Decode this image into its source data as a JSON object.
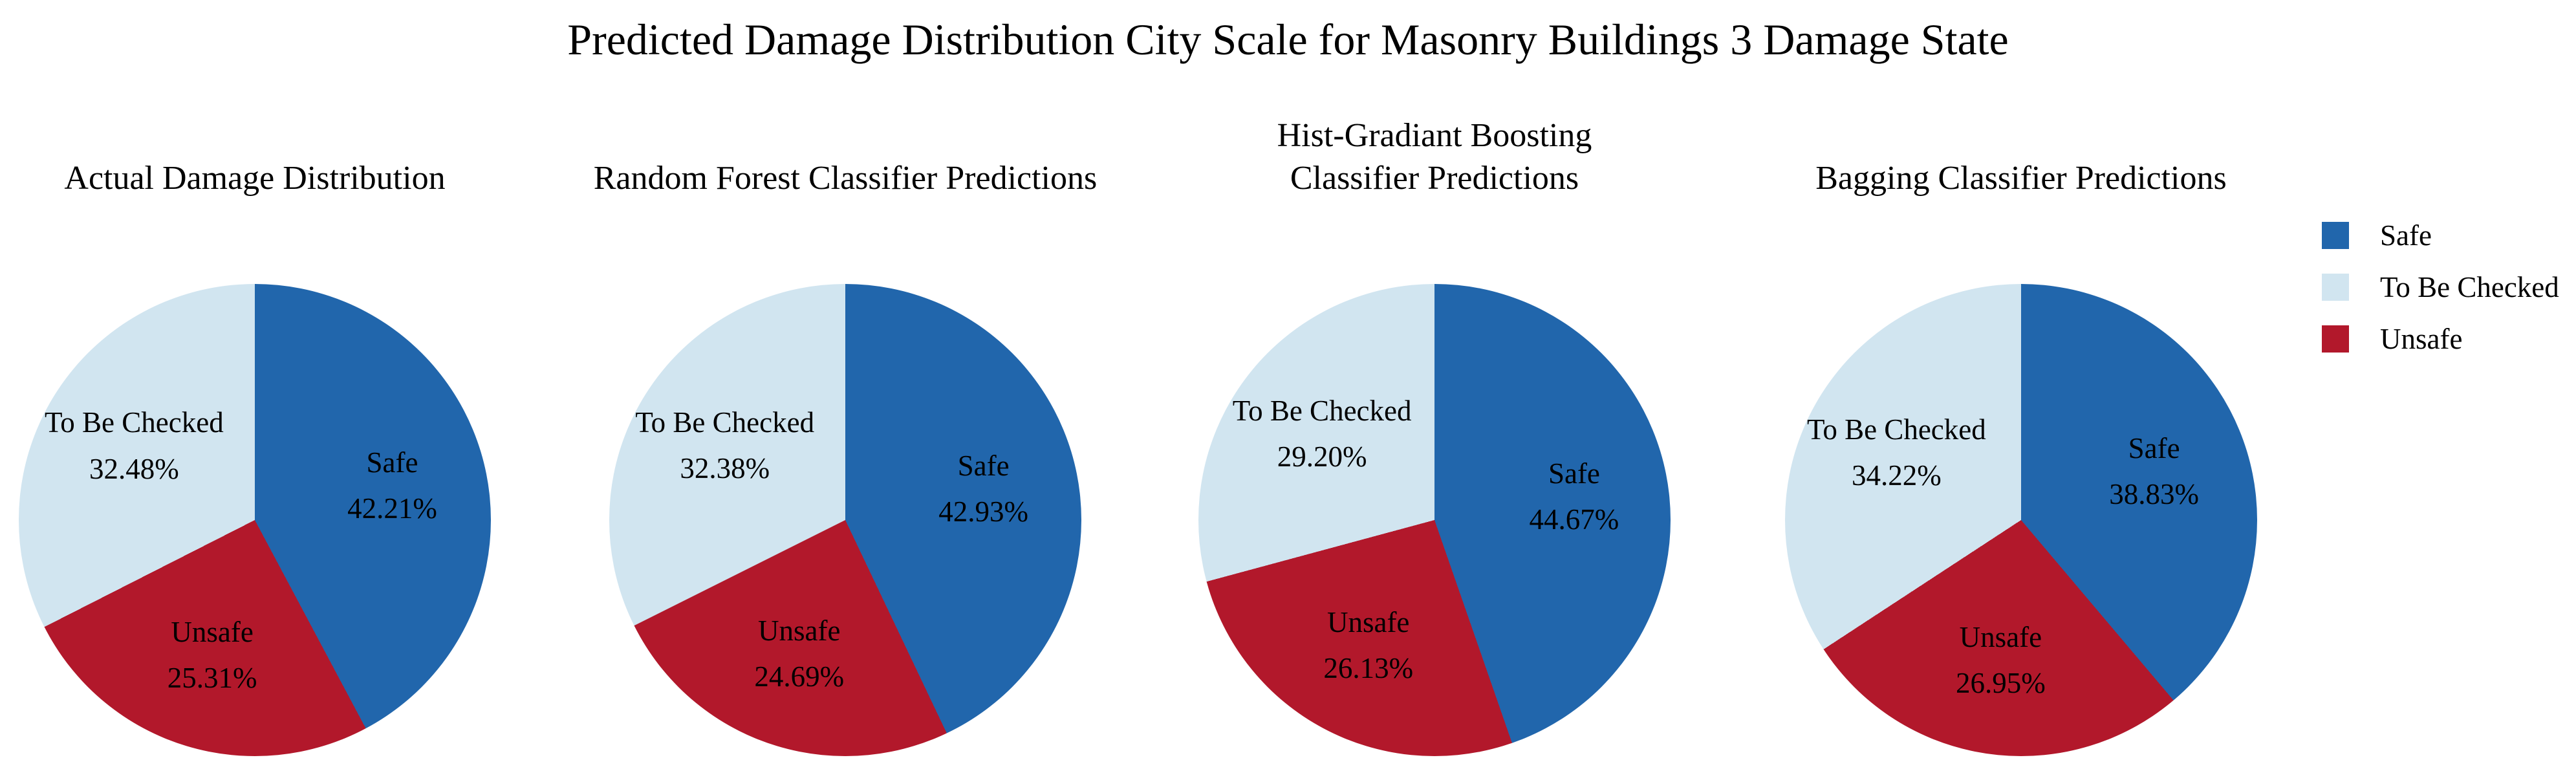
{
  "title": "Predicted Damage Distribution City Scale for Masonry Buildings 3 Damage State",
  "legend": {
    "position": "upper right",
    "items": [
      {
        "label": "Safe",
        "color": "#2166ac"
      },
      {
        "label": "To Be Checked",
        "color": "#d1e5f0"
      },
      {
        "label": "Unsafe",
        "color": "#b2182b"
      }
    ]
  },
  "colors": {
    "safe": "#2166ac",
    "to_be_checked": "#d1e5f0",
    "unsafe": "#b2182b"
  },
  "chart_data": [
    {
      "type": "pie",
      "title": "Actual Damage Distribution",
      "start_angle": 90,
      "counterclock": false,
      "slices": [
        {
          "label": "Safe",
          "value": 42.21,
          "pct_text": "42.21%",
          "color": "#2166ac"
        },
        {
          "label": "Unsafe",
          "value": 25.31,
          "pct_text": "25.31%",
          "color": "#b2182b"
        },
        {
          "label": "To Be Checked",
          "value": 32.48,
          "pct_text": "32.48%",
          "color": "#d1e5f0"
        }
      ]
    },
    {
      "type": "pie",
      "title": "Random Forest Classifier Predictions",
      "start_angle": 90,
      "counterclock": false,
      "slices": [
        {
          "label": "Safe",
          "value": 42.93,
          "pct_text": "42.93%",
          "color": "#2166ac"
        },
        {
          "label": "Unsafe",
          "value": 24.69,
          "pct_text": "24.69%",
          "color": "#b2182b"
        },
        {
          "label": "To Be Checked",
          "value": 32.38,
          "pct_text": "32.38%",
          "color": "#d1e5f0"
        }
      ]
    },
    {
      "type": "pie",
      "title": "Hist-Gradiant Boosting\nClassifier Predictions",
      "start_angle": 90,
      "counterclock": false,
      "slices": [
        {
          "label": "Safe",
          "value": 44.67,
          "pct_text": "44.67%",
          "color": "#2166ac"
        },
        {
          "label": "Unsafe",
          "value": 26.13,
          "pct_text": "26.13%",
          "color": "#b2182b"
        },
        {
          "label": "To Be Checked",
          "value": 29.2,
          "pct_text": "29.20%",
          "color": "#d1e5f0"
        }
      ]
    },
    {
      "type": "pie",
      "title": "Bagging Classifier Predictions",
      "start_angle": 90,
      "counterclock": false,
      "slices": [
        {
          "label": "Safe",
          "value": 38.83,
          "pct_text": "38.83%",
          "color": "#2166ac"
        },
        {
          "label": "Unsafe",
          "value": 26.95,
          "pct_text": "26.95%",
          "color": "#b2182b"
        },
        {
          "label": "To Be Checked",
          "value": 34.22,
          "pct_text": "34.22%",
          "color": "#d1e5f0"
        }
      ]
    }
  ]
}
